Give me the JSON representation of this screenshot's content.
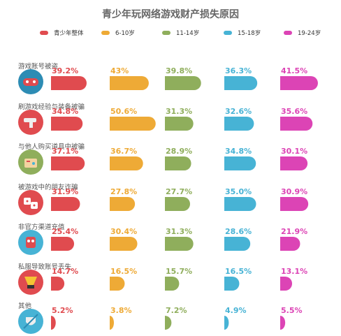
{
  "chart_data": {
    "type": "bar",
    "title": "青少年玩网络游戏财产损失原因",
    "series": [
      {
        "name": "青少年整体",
        "color": "#e04b4f",
        "values": [
          39.2,
          34.8,
          37.1,
          31.9,
          25.4,
          14.7,
          5.2
        ]
      },
      {
        "name": "6-10岁",
        "color": "#eeaa36",
        "values": [
          43,
          50.6,
          36.7,
          27.8,
          30.4,
          16.5,
          3.8
        ]
      },
      {
        "name": "11-14岁",
        "color": "#8fae5c",
        "values": [
          39.8,
          31.3,
          28.9,
          27.7,
          31.3,
          15.7,
          7.2
        ]
      },
      {
        "name": "15-18岁",
        "color": "#47b3d5",
        "values": [
          36.3,
          32.6,
          34.8,
          35.0,
          28.6,
          16.5,
          4.9
        ]
      },
      {
        "name": "19-24岁",
        "color": "#dc44b5",
        "values": [
          41.5,
          35.6,
          30.1,
          30.9,
          21.9,
          13.1,
          5.5
        ]
      }
    ],
    "value_labels": [
      [
        "39.2%",
        "43%",
        "39.8%",
        "36.3%",
        "41.5%"
      ],
      [
        "34.8%",
        "50.6%",
        "31.3%",
        "32.6%",
        "35.6%"
      ],
      [
        "37.1%",
        "36.7%",
        "28.9%",
        "34.8%",
        "30.1%"
      ],
      [
        "31.9%",
        "27.8%",
        "27.7%",
        "35.0%",
        "30.9%"
      ],
      [
        "25.4%",
        "30.4%",
        "31.3%",
        "28.6%",
        "21.9%"
      ],
      [
        "14.7%",
        "16.5%",
        "15.7%",
        "16.5%",
        "13.1%"
      ],
      [
        "5.2%",
        "3.8%",
        "7.2%",
        "4.9%",
        "5.5%"
      ]
    ],
    "categories": [
      {
        "label": "游戏账号被盗",
        "icon": "gamepad-icon"
      },
      {
        "label": "刷游戏经验与装备被骗",
        "icon": "gun-icon"
      },
      {
        "label": "与他人购买道具中被骗",
        "icon": "dpad-icon"
      },
      {
        "label": "被游戏中的朋友诈骗",
        "icon": "dice-icon"
      },
      {
        "label": "非官方渠道充值",
        "icon": "robot-icon"
      },
      {
        "label": "私服导致账号丢失",
        "icon": "lamp-icon"
      },
      {
        "label": "其他",
        "icon": "sword-shield-icon"
      }
    ]
  }
}
